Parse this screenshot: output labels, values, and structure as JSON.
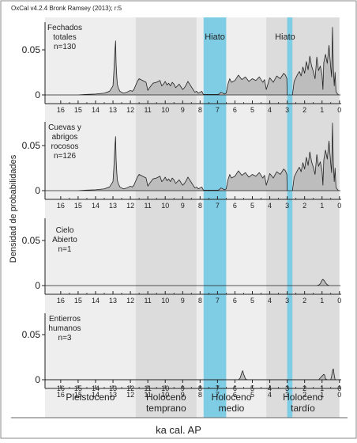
{
  "header": "OxCal v4.2.4 Bronk Ramsey (2013); r:5",
  "ylabel": "Densidad de probabilidades",
  "xlabel": "ka cal. AP",
  "colors": {
    "period_light": "#eeeeee",
    "period_dark": "#dcdcdc",
    "hiatus": "#7fcde5",
    "curve_fill": "#bdbdbd",
    "curve_line": "#222222",
    "frame": "#888888"
  },
  "chart_data": {
    "type": "area",
    "x_unit": "ka cal. AP",
    "xlim": [
      16.9,
      -0.1
    ],
    "x_ticks": [
      "16",
      "15",
      "14",
      "13",
      "12",
      "11",
      "10",
      "9",
      "8",
      "7",
      "6",
      "5",
      "4",
      "3",
      "2",
      "1",
      "0"
    ],
    "ylim": [
      0,
      0.08
    ],
    "y_ticks": [
      "0",
      "0.05"
    ],
    "periods": [
      {
        "name": "Pleistoceno",
        "lines": [
          "Pleistoceno"
        ],
        "from": 17.0,
        "to": 11.7,
        "shade": "light"
      },
      {
        "name": "Holoceno temprano",
        "lines": [
          "Holoceno",
          "temprano"
        ],
        "from": 11.7,
        "to": 8.2,
        "shade": "dark"
      },
      {
        "name": "Holoceno medio",
        "lines": [
          "Holoceno",
          "medio"
        ],
        "from": 8.2,
        "to": 4.2,
        "shade": "light"
      },
      {
        "name": "Holoceno tardío",
        "lines": [
          "Holoceno",
          "tardío"
        ],
        "from": 4.2,
        "to": 0.0,
        "shade": "dark"
      }
    ],
    "hiatuses": [
      {
        "label": "Hiato",
        "from": 7.8,
        "to": 6.5
      },
      {
        "label": "Hiato",
        "from": 3.0,
        "to": 2.7
      }
    ],
    "panels": [
      {
        "label": [
          "Fechados",
          "totales",
          "n=130"
        ],
        "x": [
          16.9,
          16,
          15,
          14.6,
          14,
          13.5,
          13.2,
          13.0,
          12.95,
          12.9,
          12.85,
          12.82,
          12.78,
          12.75,
          12.7,
          12.6,
          12.5,
          12.4,
          12.2,
          12.0,
          11.9,
          11.8,
          11.6,
          11.5,
          11.3,
          11.1,
          11.0,
          10.9,
          10.7,
          10.5,
          10.3,
          10.2,
          10.1,
          10.0,
          9.9,
          9.8,
          9.7,
          9.6,
          9.5,
          9.4,
          9.3,
          9.2,
          9.1,
          9.0,
          8.9,
          8.8,
          8.7,
          8.6,
          8.5,
          8.4,
          8.3,
          8.2,
          8.1,
          8.0,
          7.9,
          7.85,
          7.8,
          7.5,
          7.2,
          7.0,
          6.9,
          6.8,
          6.6,
          6.5,
          6.4,
          6.3,
          6.2,
          6.0,
          5.8,
          5.6,
          5.4,
          5.2,
          5.0,
          4.8,
          4.6,
          4.4,
          4.3,
          4.2,
          4.0,
          3.8,
          3.6,
          3.4,
          3.2,
          3.1,
          3.02,
          3.0,
          2.7,
          2.6,
          2.5,
          2.4,
          2.3,
          2.2,
          2.1,
          2.0,
          1.9,
          1.8,
          1.7,
          1.6,
          1.5,
          1.4,
          1.3,
          1.2,
          1.1,
          1.0,
          0.95,
          0.9,
          0.8,
          0.7,
          0.6,
          0.5,
          0.45,
          0.4,
          0.35,
          0.3,
          0.25,
          0.2,
          0.15,
          0.1,
          0.05,
          -0.05
        ],
        "y": [
          0,
          0,
          0,
          0.0005,
          0.001,
          0.002,
          0.004,
          0.01,
          0.025,
          0.045,
          0.06,
          0.035,
          0.02,
          0.012,
          0.008,
          0.004,
          0.003,
          0.002,
          0.003,
          0.005,
          0.004,
          0.006,
          0.015,
          0.018,
          0.016,
          0.014,
          0.005,
          0.008,
          0.013,
          0.014,
          0.016,
          0.01,
          0.012,
          0.015,
          0.011,
          0.013,
          0.01,
          0.014,
          0.012,
          0.008,
          0.01,
          0.012,
          0.009,
          0.006,
          0.008,
          0.011,
          0.015,
          0.012,
          0.009,
          0.006,
          0.003,
          0.004,
          0.002,
          0.003,
          0.004,
          0.002,
          0.0005,
          0.0005,
          0.0005,
          0.0005,
          0.001,
          0.003,
          0.001,
          0.002,
          0.012,
          0.018,
          0.014,
          0.016,
          0.022,
          0.017,
          0.02,
          0.015,
          0.018,
          0.016,
          0.02,
          0.014,
          0.017,
          0.006,
          0.019,
          0.014,
          0.021,
          0.018,
          0.024,
          0.022,
          0.018,
          0,
          0,
          0.015,
          0.019,
          0.023,
          0.026,
          0.021,
          0.031,
          0.024,
          0.037,
          0.028,
          0.043,
          0.032,
          0.026,
          0.018,
          0.042,
          0.027,
          0.032,
          0.022,
          0.006,
          0.036,
          0.045,
          0.035,
          0.055,
          0.03,
          0.02,
          0.075,
          0.03,
          0.01,
          0.025,
          0.004,
          0.002,
          0.001,
          0.0,
          0
        ]
      },
      {
        "label": [
          "Cuevas y",
          "abrigos",
          "rocosos",
          "n=126"
        ],
        "x": [
          16.9,
          16,
          15,
          14.6,
          14,
          13.5,
          13.2,
          13.0,
          12.95,
          12.9,
          12.85,
          12.82,
          12.78,
          12.75,
          12.7,
          12.6,
          12.5,
          12.4,
          12.2,
          12.0,
          11.9,
          11.8,
          11.6,
          11.5,
          11.3,
          11.1,
          11.0,
          10.9,
          10.7,
          10.5,
          10.3,
          10.2,
          10.1,
          10.0,
          9.9,
          9.8,
          9.7,
          9.6,
          9.5,
          9.4,
          9.3,
          9.2,
          9.1,
          9.0,
          8.9,
          8.8,
          8.7,
          8.6,
          8.5,
          8.4,
          8.3,
          8.2,
          8.1,
          8.0,
          7.9,
          7.85,
          7.8,
          7.5,
          7.2,
          7.0,
          6.9,
          6.8,
          6.6,
          6.5,
          6.4,
          6.3,
          6.2,
          6.0,
          5.8,
          5.6,
          5.4,
          5.2,
          5.0,
          4.8,
          4.6,
          4.4,
          4.3,
          4.2,
          4.0,
          3.8,
          3.6,
          3.4,
          3.2,
          3.1,
          3.02,
          3.0,
          2.7,
          2.6,
          2.5,
          2.4,
          2.3,
          2.2,
          2.1,
          2.0,
          1.9,
          1.8,
          1.7,
          1.6,
          1.5,
          1.4,
          1.3,
          1.2,
          1.1,
          1.0,
          0.95,
          0.9,
          0.8,
          0.7,
          0.6,
          0.5,
          0.45,
          0.4,
          0.35,
          0.3,
          0.25,
          0.2,
          0.15,
          0.1,
          0.05,
          -0.05
        ],
        "y": [
          0,
          0,
          0,
          0.0005,
          0.001,
          0.002,
          0.004,
          0.01,
          0.025,
          0.045,
          0.06,
          0.035,
          0.02,
          0.012,
          0.008,
          0.004,
          0.003,
          0.002,
          0.003,
          0.005,
          0.004,
          0.006,
          0.015,
          0.018,
          0.016,
          0.014,
          0.005,
          0.008,
          0.013,
          0.014,
          0.016,
          0.01,
          0.012,
          0.015,
          0.011,
          0.013,
          0.01,
          0.014,
          0.012,
          0.008,
          0.01,
          0.012,
          0.009,
          0.006,
          0.008,
          0.011,
          0.015,
          0.012,
          0.009,
          0.006,
          0.003,
          0.004,
          0.002,
          0.003,
          0.004,
          0.002,
          0.0005,
          0.0005,
          0.0005,
          0.0005,
          0.001,
          0.003,
          0.001,
          0.002,
          0.012,
          0.018,
          0.014,
          0.016,
          0.022,
          0.017,
          0.02,
          0.015,
          0.018,
          0.016,
          0.02,
          0.014,
          0.017,
          0.006,
          0.019,
          0.014,
          0.021,
          0.018,
          0.024,
          0.022,
          0.018,
          0,
          0,
          0.015,
          0.019,
          0.023,
          0.026,
          0.021,
          0.031,
          0.024,
          0.037,
          0.028,
          0.043,
          0.032,
          0.026,
          0.018,
          0.04,
          0.027,
          0.032,
          0.022,
          0.006,
          0.034,
          0.045,
          0.035,
          0.055,
          0.03,
          0.02,
          0.075,
          0.03,
          0.01,
          0.025,
          0.004,
          0.002,
          0.001,
          0.0,
          0
        ]
      },
      {
        "label": [
          "Cielo",
          "Abierto",
          "n=1"
        ],
        "x": [
          16.9,
          1.3,
          1.2,
          1.1,
          1.05,
          1.0,
          0.95,
          0.9,
          0.85,
          0.8,
          0.7,
          0.6,
          -0.05
        ],
        "y": [
          0,
          0,
          0.0005,
          0.002,
          0.004,
          0.006,
          0.007,
          0.006,
          0.005,
          0.003,
          0.001,
          0,
          0
        ]
      },
      {
        "label": [
          "Entierros",
          "humanos",
          "n=3"
        ],
        "x": [
          16.9,
          5.8,
          5.7,
          5.6,
          5.55,
          5.5,
          5.45,
          5.4,
          5.3,
          1.2,
          1.1,
          1.0,
          0.9,
          0.85,
          0.8,
          0.7,
          0.5,
          0.45,
          0.4,
          0.35,
          0.3,
          0.25,
          -0.05
        ],
        "y": [
          0,
          0,
          0.002,
          0.008,
          0.01,
          0.006,
          0.004,
          0.001,
          0,
          0,
          0.002,
          0.004,
          0.006,
          0.005,
          0.001,
          0,
          0,
          0.004,
          0.01,
          0.012,
          0.005,
          0,
          0
        ]
      }
    ]
  }
}
